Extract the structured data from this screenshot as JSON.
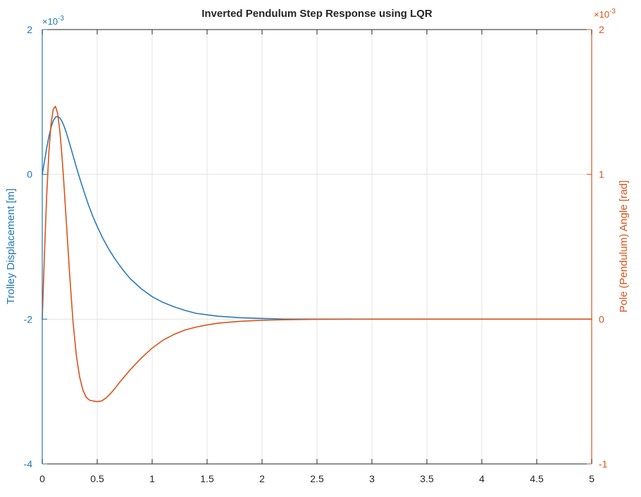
{
  "chart_data": {
    "type": "line",
    "title": "Inverted Pendulum Step Response using LQR",
    "xlabel": "",
    "xlim": [
      0,
      5
    ],
    "x_ticks": [
      0,
      0.5,
      1,
      1.5,
      2,
      2.5,
      3,
      3.5,
      4,
      4.5,
      5
    ],
    "x_tick_labels": [
      "0",
      "0.5",
      "1",
      "1.5",
      "2",
      "2.5",
      "3",
      "3.5",
      "4",
      "4.5",
      "5"
    ],
    "grid": true,
    "left_axis": {
      "label": "Trolley Displacement [m]",
      "exponent_label": "×10",
      "exponent": "-3",
      "ylim": [
        -4,
        2
      ],
      "ticks": [
        -4,
        -2,
        0,
        2
      ],
      "tick_labels": [
        "-4",
        "-2",
        "0",
        "2"
      ],
      "color": "#1f77b4"
    },
    "right_axis": {
      "label": "Pole (Pendulum) Angle [rad]",
      "exponent_label": "×10",
      "exponent": "-3",
      "ylim": [
        -1,
        2
      ],
      "ticks": [
        -1,
        0,
        1,
        2
      ],
      "tick_labels": [
        "-1",
        "0",
        "1",
        "2"
      ],
      "color": "#d95319"
    },
    "series": [
      {
        "axis": "left",
        "color": "#2a7ab9",
        "x": [
          0,
          0.02,
          0.04,
          0.06,
          0.08,
          0.1,
          0.12,
          0.14,
          0.16,
          0.18,
          0.2,
          0.22,
          0.25,
          0.28,
          0.31,
          0.34,
          0.38,
          0.42,
          0.46,
          0.5,
          0.55,
          0.6,
          0.65,
          0.7,
          0.75,
          0.8,
          0.9,
          1.0,
          1.1,
          1.2,
          1.3,
          1.4,
          1.5,
          1.6,
          1.8,
          2.0,
          2.2,
          2.5,
          3.0,
          3.5,
          4.0,
          4.5,
          5.0
        ],
        "y": [
          0,
          0.18,
          0.36,
          0.52,
          0.65,
          0.74,
          0.79,
          0.8,
          0.78,
          0.73,
          0.66,
          0.57,
          0.42,
          0.26,
          0.1,
          -0.05,
          -0.24,
          -0.42,
          -0.58,
          -0.72,
          -0.88,
          -1.02,
          -1.14,
          -1.25,
          -1.35,
          -1.44,
          -1.58,
          -1.69,
          -1.77,
          -1.83,
          -1.88,
          -1.92,
          -1.94,
          -1.96,
          -1.98,
          -1.99,
          -2.0,
          -2.0,
          -2.0,
          -2.0,
          -2.0,
          -2.0,
          -2.0
        ]
      },
      {
        "axis": "right",
        "color": "#d95319",
        "x": [
          0,
          0.02,
          0.04,
          0.06,
          0.08,
          0.1,
          0.12,
          0.14,
          0.16,
          0.18,
          0.2,
          0.22,
          0.25,
          0.28,
          0.31,
          0.34,
          0.37,
          0.4,
          0.43,
          0.46,
          0.5,
          0.54,
          0.58,
          0.62,
          0.66,
          0.7,
          0.75,
          0.8,
          0.9,
          1.0,
          1.1,
          1.2,
          1.3,
          1.4,
          1.5,
          1.6,
          1.8,
          2.0,
          2.2,
          2.5,
          3.0,
          3.5,
          4.0,
          4.5,
          5.0
        ],
        "y": [
          0,
          0.45,
          0.85,
          1.15,
          1.35,
          1.45,
          1.47,
          1.42,
          1.3,
          1.12,
          0.9,
          0.66,
          0.3,
          -0.02,
          -0.25,
          -0.4,
          -0.49,
          -0.54,
          -0.56,
          -0.565,
          -0.57,
          -0.565,
          -0.545,
          -0.515,
          -0.48,
          -0.44,
          -0.395,
          -0.35,
          -0.27,
          -0.2,
          -0.145,
          -0.105,
          -0.075,
          -0.055,
          -0.04,
          -0.028,
          -0.015,
          -0.008,
          -0.004,
          -0.001,
          0.0,
          0.0,
          0.0,
          0.0,
          0.0
        ]
      }
    ]
  }
}
